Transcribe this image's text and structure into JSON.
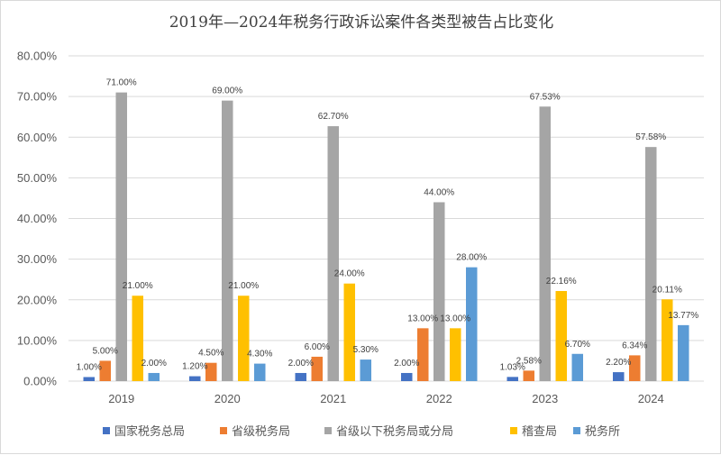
{
  "chart_data": {
    "type": "bar",
    "title": "2019年—2024年税务行政诉讼案件各类型被告占比变化",
    "xlabel": "",
    "ylabel": "",
    "categories": [
      "2019",
      "2020",
      "2021",
      "2022",
      "2023",
      "2024"
    ],
    "ylim": [
      0,
      80
    ],
    "yticks": [
      "0.00%",
      "10.00%",
      "20.00%",
      "30.00%",
      "40.00%",
      "50.00%",
      "60.00%",
      "70.00%",
      "80.00%"
    ],
    "grid": true,
    "legend_position": "bottom",
    "series": [
      {
        "name": "国家税务总局",
        "color": "#4472c4",
        "values": [
          1.0,
          1.2,
          2.0,
          2.0,
          1.03,
          2.2
        ],
        "labels": [
          "1.00%",
          "1.20%",
          "2.00%",
          "2.00%",
          "1.03%",
          "2.20%"
        ]
      },
      {
        "name": "省级税务局",
        "color": "#ed7d31",
        "values": [
          5.0,
          4.5,
          6.0,
          13.0,
          2.58,
          6.34
        ],
        "labels": [
          "5.00%",
          "4.50%",
          "6.00%",
          "13.00%",
          "2.58%",
          "6.34%"
        ]
      },
      {
        "name": "省级以下税务局或分局",
        "color": "#a5a5a5",
        "values": [
          71.0,
          69.0,
          62.7,
          44.0,
          67.53,
          57.58
        ],
        "labels": [
          "71.00%",
          "69.00%",
          "62.70%",
          "44.00%",
          "67.53%",
          "57.58%"
        ]
      },
      {
        "name": "稽查局",
        "color": "#ffc000",
        "values": [
          21.0,
          21.0,
          24.0,
          13.0,
          22.16,
          20.11
        ],
        "labels": [
          "21.00%",
          "21.00%",
          "24.00%",
          "13.00%",
          "22.16%",
          "20.11%"
        ]
      },
      {
        "name": "税务所",
        "color": "#5b9bd5",
        "values": [
          2.0,
          4.3,
          5.3,
          28.0,
          6.7,
          13.77
        ],
        "labels": [
          "2.00%",
          "4.30%",
          "5.30%",
          "28.00%",
          "6.70%",
          "13.77%"
        ]
      }
    ]
  }
}
